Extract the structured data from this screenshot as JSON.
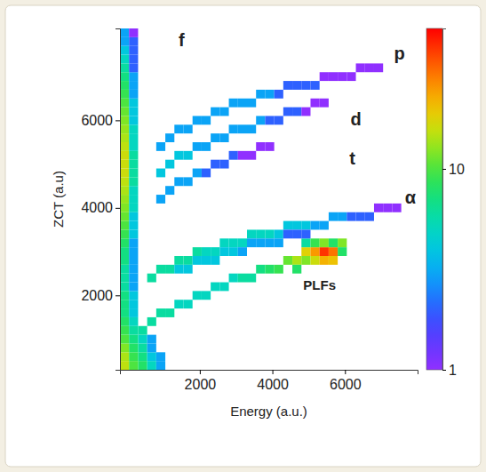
{
  "chart_data": {
    "type": "heatmap",
    "x_label": "Energy (a.u.)",
    "y_label": "ZCT (a.u)",
    "xlim": [
      -200,
      8000
    ],
    "ylim": [
      300,
      8100
    ],
    "xticks": [
      2000,
      4000,
      6000
    ],
    "yticks": [
      2000,
      4000,
      6000
    ],
    "bin_size": [
      250,
      200
    ],
    "colorbar": {
      "range": [
        1,
        50
      ],
      "ticks": [
        1,
        10
      ],
      "log": true
    },
    "annotations": [
      {
        "text": "f",
        "x": 1500,
        "y": 7800
      },
      {
        "text": "p",
        "x": 7500,
        "y": 7500
      },
      {
        "text": "d",
        "x": 6300,
        "y": 6000
      },
      {
        "text": "t",
        "x": 6200,
        "y": 5100
      },
      {
        "text": "α",
        "x": 7800,
        "y": 4200
      },
      {
        "text": "PLFs",
        "x": 5300,
        "y": 2200
      }
    ],
    "cells": [
      [
        -75,
        400,
        15
      ],
      [
        -75,
        600,
        14
      ],
      [
        -75,
        800,
        12
      ],
      [
        -75,
        1000,
        10
      ],
      [
        -75,
        1200,
        9
      ],
      [
        -75,
        1400,
        8
      ],
      [
        -75,
        1600,
        7
      ],
      [
        -75,
        1800,
        7
      ],
      [
        -75,
        2000,
        7
      ],
      [
        -75,
        2200,
        6
      ],
      [
        -75,
        2400,
        6
      ],
      [
        -75,
        2600,
        6
      ],
      [
        -75,
        2800,
        7
      ],
      [
        -75,
        3000,
        7
      ],
      [
        -75,
        3200,
        8
      ],
      [
        -75,
        3400,
        9
      ],
      [
        -75,
        3600,
        10
      ],
      [
        -75,
        3800,
        11
      ],
      [
        -75,
        4000,
        12
      ],
      [
        -75,
        4200,
        13
      ],
      [
        -75,
        4400,
        14
      ],
      [
        -75,
        4600,
        15
      ],
      [
        -75,
        4800,
        16
      ],
      [
        -75,
        5000,
        16
      ],
      [
        -75,
        5200,
        16
      ],
      [
        -75,
        5400,
        15
      ],
      [
        -75,
        5600,
        14
      ],
      [
        -75,
        5800,
        13
      ],
      [
        -75,
        6000,
        12
      ],
      [
        -75,
        6200,
        11
      ],
      [
        -75,
        6400,
        10
      ],
      [
        -75,
        6600,
        9
      ],
      [
        -75,
        6800,
        8
      ],
      [
        -75,
        7000,
        7
      ],
      [
        -75,
        7200,
        6
      ],
      [
        -75,
        7400,
        5
      ],
      [
        -75,
        7600,
        4
      ],
      [
        -75,
        7800,
        3
      ],
      [
        -75,
        8000,
        3
      ],
      [
        175,
        400,
        10
      ],
      [
        175,
        600,
        9
      ],
      [
        175,
        800,
        8
      ],
      [
        175,
        1000,
        7
      ],
      [
        175,
        1200,
        6
      ],
      [
        175,
        1400,
        5
      ],
      [
        175,
        1600,
        4
      ],
      [
        175,
        1800,
        4
      ],
      [
        175,
        2000,
        4
      ],
      [
        175,
        2200,
        3
      ],
      [
        175,
        2400,
        3
      ],
      [
        175,
        2600,
        3
      ],
      [
        175,
        2800,
        3
      ],
      [
        175,
        3000,
        3
      ],
      [
        175,
        3200,
        3
      ],
      [
        175,
        3400,
        4
      ],
      [
        175,
        3600,
        4
      ],
      [
        175,
        3800,
        4
      ],
      [
        175,
        4000,
        5
      ],
      [
        175,
        4200,
        5
      ],
      [
        175,
        4400,
        5
      ],
      [
        175,
        4600,
        6
      ],
      [
        175,
        4800,
        6
      ],
      [
        175,
        5000,
        6
      ],
      [
        175,
        5200,
        6
      ],
      [
        175,
        5400,
        5
      ],
      [
        175,
        5600,
        5
      ],
      [
        175,
        5800,
        5
      ],
      [
        175,
        6000,
        4
      ],
      [
        175,
        6200,
        4
      ],
      [
        175,
        6400,
        4
      ],
      [
        175,
        6600,
        3
      ],
      [
        175,
        6800,
        3
      ],
      [
        175,
        7000,
        3
      ],
      [
        175,
        7200,
        2
      ],
      [
        175,
        7400,
        2
      ],
      [
        175,
        7600,
        2
      ],
      [
        175,
        7800,
        2
      ],
      [
        175,
        8000,
        1
      ],
      [
        425,
        400,
        8
      ],
      [
        425,
        600,
        7
      ],
      [
        425,
        800,
        6
      ],
      [
        425,
        1000,
        5
      ],
      [
        675,
        400,
        5
      ],
      [
        675,
        600,
        4
      ],
      [
        675,
        800,
        3
      ],
      [
        675,
        1000,
        3
      ],
      [
        925,
        400,
        3
      ],
      [
        925,
        600,
        3
      ],
      [
        425,
        1200,
        6
      ],
      [
        675,
        1400,
        6
      ],
      [
        925,
        1600,
        6
      ],
      [
        1175,
        1600,
        6
      ],
      [
        1425,
        1800,
        5
      ],
      [
        1675,
        1800,
        5
      ],
      [
        1925,
        2000,
        5
      ],
      [
        2175,
        2000,
        5
      ],
      [
        2425,
        2200,
        5
      ],
      [
        2675,
        2200,
        5
      ],
      [
        2925,
        2400,
        5
      ],
      [
        3175,
        2400,
        6
      ],
      [
        3425,
        2400,
        6
      ],
      [
        3675,
        2600,
        7
      ],
      [
        3925,
        2600,
        8
      ],
      [
        4175,
        2600,
        9
      ],
      [
        4425,
        2800,
        11
      ],
      [
        4675,
        2800,
        14
      ],
      [
        4925,
        3000,
        18
      ],
      [
        5175,
        3000,
        25
      ],
      [
        5425,
        3000,
        40
      ],
      [
        5675,
        3000,
        30
      ],
      [
        5925,
        3200,
        12
      ],
      [
        4675,
        2600,
        8
      ],
      [
        4925,
        2800,
        12
      ],
      [
        5175,
        2800,
        16
      ],
      [
        5425,
        2800,
        22
      ],
      [
        5675,
        2800,
        20
      ],
      [
        5925,
        3000,
        8
      ],
      [
        4925,
        3200,
        6
      ],
      [
        5175,
        3200,
        9
      ],
      [
        5425,
        3200,
        12
      ],
      [
        5675,
        3200,
        8
      ],
      [
        675,
        2400,
        6
      ],
      [
        925,
        2600,
        6
      ],
      [
        1175,
        2600,
        6
      ],
      [
        1425,
        2800,
        6
      ],
      [
        1675,
        2800,
        6
      ],
      [
        1925,
        3000,
        6
      ],
      [
        2175,
        3000,
        5
      ],
      [
        2425,
        3000,
        5
      ],
      [
        2675,
        3200,
        5
      ],
      [
        2925,
        3200,
        5
      ],
      [
        3175,
        3200,
        5
      ],
      [
        3425,
        3400,
        5
      ],
      [
        3675,
        3400,
        5
      ],
      [
        3925,
        3400,
        5
      ],
      [
        4175,
        3400,
        4
      ],
      [
        4425,
        3600,
        4
      ],
      [
        4675,
        3600,
        4
      ],
      [
        4925,
        3600,
        4
      ],
      [
        5175,
        3600,
        3
      ],
      [
        5425,
        3600,
        3
      ],
      [
        5675,
        3800,
        3
      ],
      [
        5925,
        3800,
        3
      ],
      [
        6175,
        3800,
        2
      ],
      [
        6425,
        3800,
        2
      ],
      [
        6675,
        3800,
        2
      ],
      [
        6925,
        4000,
        1
      ],
      [
        7175,
        4000,
        1
      ],
      [
        7425,
        4000,
        1
      ],
      [
        1425,
        2600,
        4
      ],
      [
        1675,
        2600,
        4
      ],
      [
        1925,
        2800,
        4
      ],
      [
        2175,
        2800,
        4
      ],
      [
        2425,
        2800,
        4
      ],
      [
        2675,
        3000,
        4
      ],
      [
        2925,
        3000,
        4
      ],
      [
        3175,
        3000,
        3
      ],
      [
        3425,
        3200,
        3
      ],
      [
        3675,
        3200,
        3
      ],
      [
        3925,
        3200,
        3
      ],
      [
        4175,
        3200,
        3
      ],
      [
        4425,
        3400,
        2
      ],
      [
        4675,
        3400,
        2
      ],
      [
        4925,
        3400,
        2
      ],
      [
        925,
        4200,
        3
      ],
      [
        1175,
        4400,
        3
      ],
      [
        1425,
        4600,
        3
      ],
      [
        1675,
        4600,
        3
      ],
      [
        1925,
        4800,
        3
      ],
      [
        2175,
        4800,
        2
      ],
      [
        2425,
        5000,
        2
      ],
      [
        2675,
        5000,
        2
      ],
      [
        2925,
        5200,
        2
      ],
      [
        3175,
        5200,
        1
      ],
      [
        3425,
        5200,
        1
      ],
      [
        3675,
        5400,
        1
      ],
      [
        3925,
        5400,
        1
      ],
      [
        925,
        4800,
        4
      ],
      [
        1175,
        5000,
        4
      ],
      [
        1425,
        5200,
        4
      ],
      [
        1675,
        5200,
        4
      ],
      [
        1925,
        5400,
        3
      ],
      [
        2175,
        5400,
        3
      ],
      [
        2425,
        5600,
        3
      ],
      [
        2675,
        5600,
        3
      ],
      [
        2925,
        5800,
        3
      ],
      [
        3175,
        5800,
        3
      ],
      [
        3425,
        5800,
        3
      ],
      [
        3675,
        6000,
        3
      ],
      [
        3925,
        6000,
        2
      ],
      [
        4175,
        6000,
        2
      ],
      [
        4425,
        6200,
        2
      ],
      [
        4675,
        6200,
        2
      ],
      [
        4925,
        6200,
        1
      ],
      [
        5175,
        6400,
        1
      ],
      [
        5425,
        6400,
        1
      ],
      [
        925,
        5400,
        3
      ],
      [
        1175,
        5600,
        3
      ],
      [
        1425,
        5800,
        3
      ],
      [
        1675,
        5800,
        3
      ],
      [
        1925,
        6000,
        3
      ],
      [
        2175,
        6000,
        3
      ],
      [
        2425,
        6200,
        3
      ],
      [
        2675,
        6200,
        3
      ],
      [
        2925,
        6400,
        3
      ],
      [
        3175,
        6400,
        3
      ],
      [
        3425,
        6400,
        3
      ],
      [
        3675,
        6600,
        3
      ],
      [
        3925,
        6600,
        3
      ],
      [
        4175,
        6600,
        2
      ],
      [
        4425,
        6800,
        2
      ],
      [
        4675,
        6800,
        2
      ],
      [
        4925,
        6800,
        2
      ],
      [
        5175,
        6800,
        2
      ],
      [
        5425,
        7000,
        1
      ],
      [
        5675,
        7000,
        1
      ],
      [
        5925,
        7000,
        1
      ],
      [
        6175,
        7000,
        1
      ],
      [
        6425,
        7200,
        1
      ],
      [
        6675,
        7200,
        1
      ],
      [
        6925,
        7200,
        1
      ]
    ]
  }
}
